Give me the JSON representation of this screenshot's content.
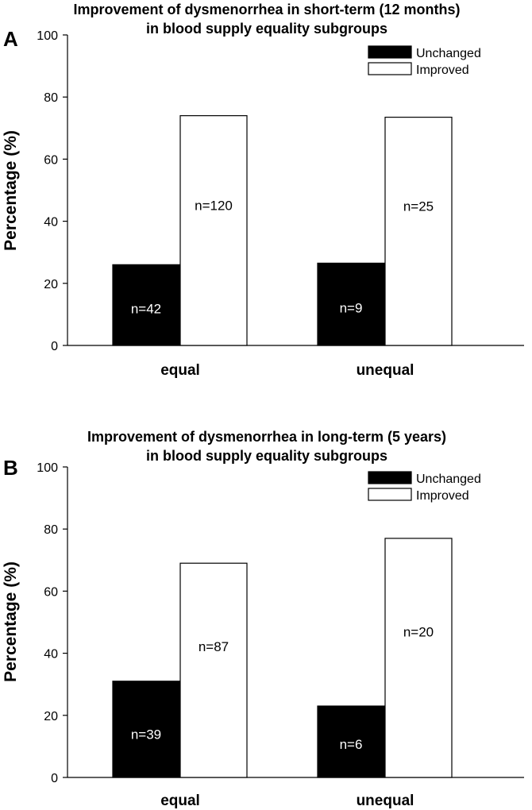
{
  "chart_data": [
    {
      "type": "bar",
      "panel": "A",
      "title_line1": "Improvement of dysmenorrhea in short-term (12 months)",
      "title_line2": "in blood supply equality subgroups",
      "xlabel": "",
      "ylabel": "Percentage (%)",
      "ylim": [
        0,
        100
      ],
      "yticks": [
        "0",
        "20",
        "40",
        "60",
        "80",
        "100"
      ],
      "categories": [
        "equal",
        "unequal"
      ],
      "series": [
        {
          "name": "Unchanged",
          "color": "#000000",
          "values": [
            26,
            26.5
          ],
          "labels": [
            "n=42",
            "n=9"
          ]
        },
        {
          "name": "Improved",
          "color": "#ffffff",
          "values": [
            74,
            73.5
          ],
          "labels": [
            "n=120",
            "n=25"
          ]
        }
      ],
      "legend_position": "top-right"
    },
    {
      "type": "bar",
      "panel": "B",
      "title_line1": "Improvement of dysmenorrhea in long-term (5 years)",
      "title_line2": "in blood supply equality subgroups",
      "xlabel": "",
      "ylabel": "Percentage (%)",
      "ylim": [
        0,
        100
      ],
      "yticks": [
        "0",
        "20",
        "40",
        "60",
        "80",
        "100"
      ],
      "categories": [
        "equal",
        "unequal"
      ],
      "series": [
        {
          "name": "Unchanged",
          "color": "#000000",
          "values": [
            31,
            23
          ],
          "labels": [
            "n=39",
            "n=6"
          ]
        },
        {
          "name": "Improved",
          "color": "#ffffff",
          "values": [
            69,
            77
          ],
          "labels": [
            "n=87",
            "n=20"
          ]
        }
      ],
      "legend_position": "top-right"
    }
  ]
}
